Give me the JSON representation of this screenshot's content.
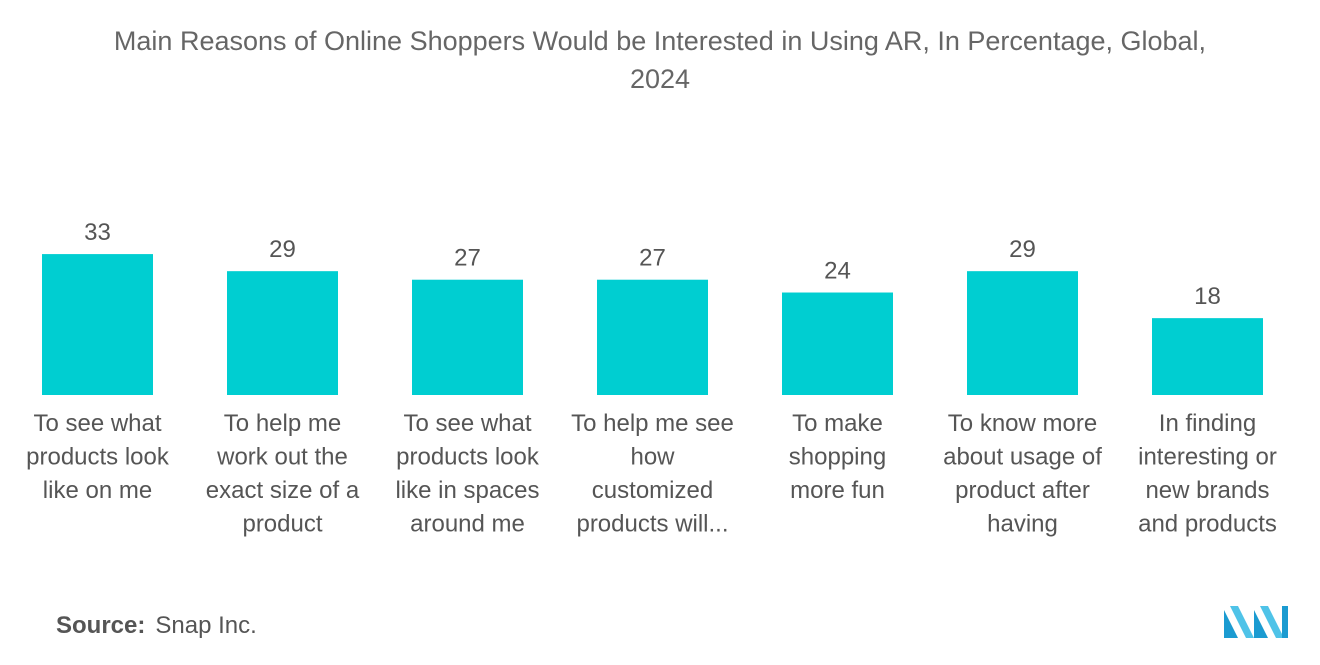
{
  "title": {
    "line1": "Main Reasons of Online Shoppers Would be Interested in Using AR, In Percentage, Global,",
    "line2": "2024"
  },
  "source": {
    "label": "Source:",
    "value": "Snap Inc."
  },
  "logo_icon": "mordor-intelligence-logo",
  "colors": {
    "bar": "#00CED1",
    "text": "#555555"
  },
  "chart_data": {
    "type": "bar",
    "title": "Main Reasons of Online Shoppers Would be Interested in Using AR, In Percentage, Global, 2024",
    "xlabel": "",
    "ylabel": "",
    "ylim": [
      0,
      33
    ],
    "grid": false,
    "categories": [
      [
        "To see what",
        "products look",
        "like on me"
      ],
      [
        "To help me",
        "work out the",
        "exact size of a",
        "product"
      ],
      [
        "To see what",
        "products look",
        "like in spaces",
        "around me"
      ],
      [
        "To help me see",
        "how",
        "customized",
        "products will..."
      ],
      [
        "To make",
        "shopping",
        "more fun"
      ],
      [
        "To know more",
        "about usage of",
        "product after",
        "having"
      ],
      [
        "In finding",
        "interesting or",
        "new brands",
        "and products"
      ]
    ],
    "values": [
      33,
      29,
      27,
      27,
      24,
      29,
      18
    ]
  }
}
